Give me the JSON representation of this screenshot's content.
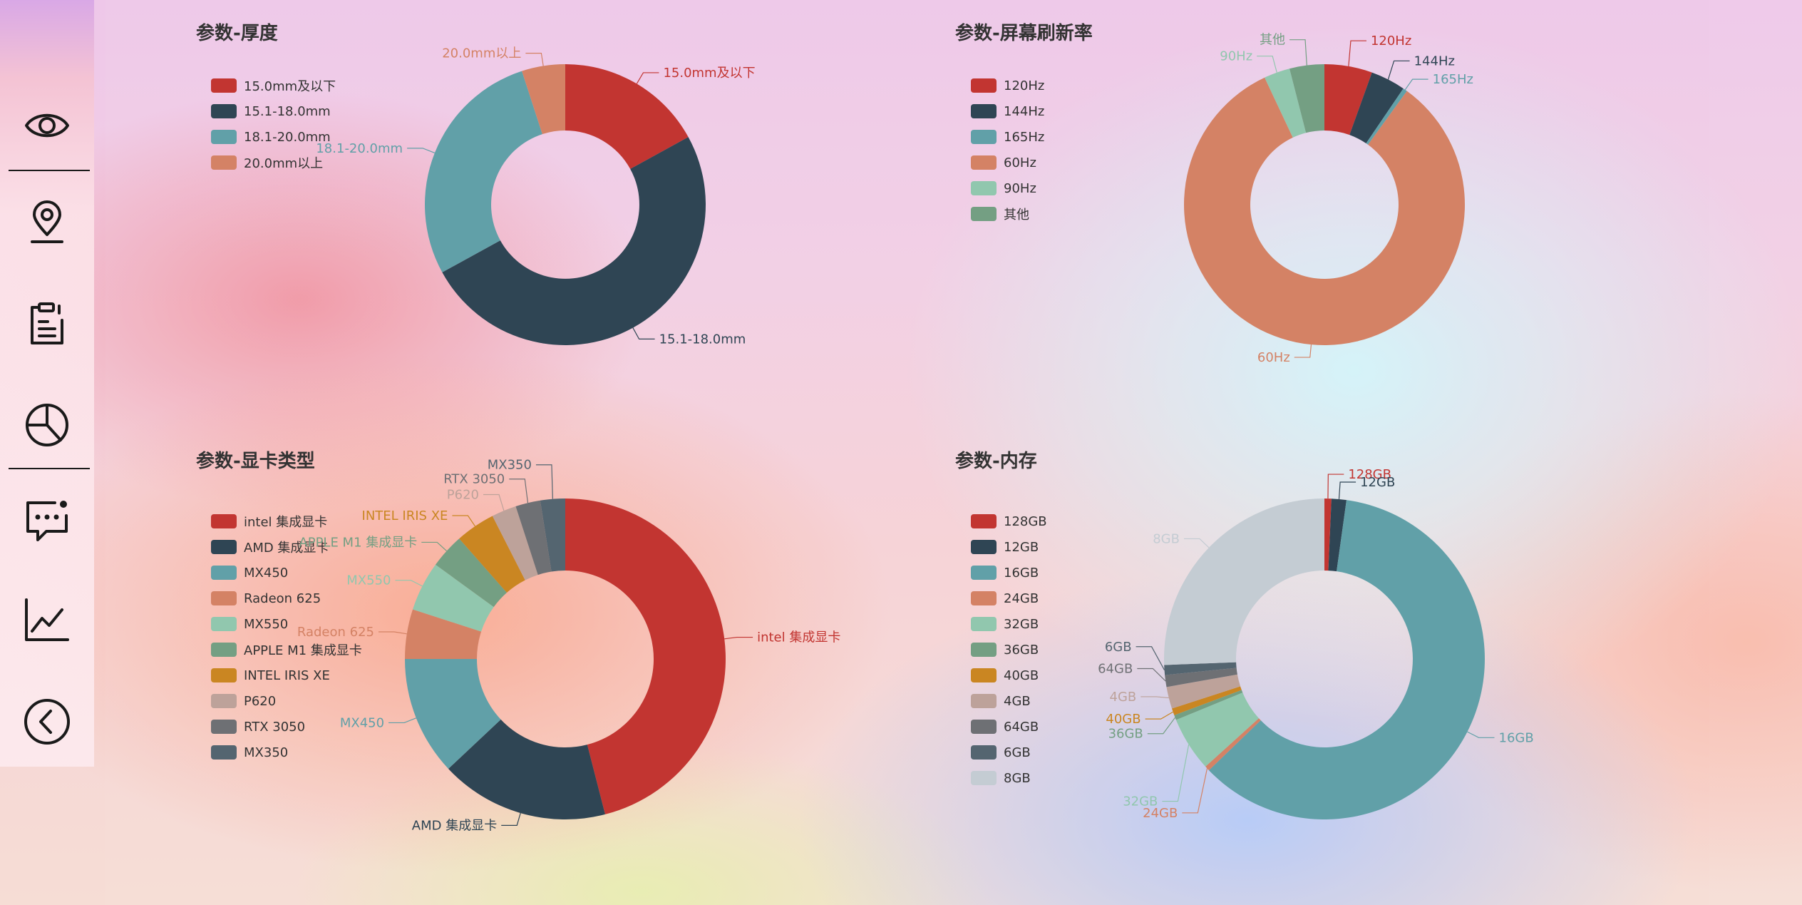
{
  "palette": [
    "#c23531",
    "#2f4554",
    "#61a0a8",
    "#d48265",
    "#91c7ae",
    "#749f83",
    "#ca8622",
    "#bda29a",
    "#6e7074",
    "#546570",
    "#c4ccd3"
  ],
  "sidebar": {
    "items": [
      {
        "icon": "eye-icon"
      },
      {
        "icon": "location-pin-icon"
      },
      {
        "icon": "clipboard-icon"
      },
      {
        "icon": "pie-chart-icon"
      },
      {
        "icon": "message-icon"
      },
      {
        "icon": "line-chart-icon"
      },
      {
        "icon": "back-arrow-icon"
      }
    ]
  },
  "chart_data": [
    {
      "type": "pie",
      "title": "参数-厚度",
      "categories": [
        "15.0mm及以下",
        "15.1-18.0mm",
        "18.1-20.0mm",
        "20.0mm以上"
      ],
      "values": [
        17,
        50,
        28,
        5
      ],
      "legend": "top-left"
    },
    {
      "type": "pie",
      "title": "参数-屏幕刷新率",
      "categories": [
        "120Hz",
        "144Hz",
        "165Hz",
        "60Hz",
        "90Hz",
        "其他"
      ],
      "values": [
        5.5,
        4,
        0.5,
        83,
        3,
        4
      ],
      "legend": "top-left"
    },
    {
      "type": "pie",
      "title": "参数-显卡类型",
      "categories": [
        "intel 集成显卡",
        "AMD 集成显卡",
        "MX450",
        "Radeon 625",
        "MX550",
        "APPLE M1 集成显卡",
        "INTEL IRIS XE",
        "P620",
        "RTX 3050",
        "MX350"
      ],
      "values": [
        46,
        17,
        12,
        5,
        5,
        3.5,
        4,
        2.5,
        2.5,
        2.5
      ],
      "legend": "top-left"
    },
    {
      "type": "pie",
      "title": "参数-内存",
      "categories": [
        "128GB",
        "12GB",
        "16GB",
        "24GB",
        "32GB",
        "36GB",
        "40GB",
        "4GB",
        "64GB",
        "6GB",
        "8GB"
      ],
      "values": [
        0.7,
        1.5,
        60.6,
        0.5,
        5.5,
        0.5,
        0.7,
        2.2,
        1.2,
        1.0,
        25.6
      ],
      "legend": "top-left"
    }
  ]
}
